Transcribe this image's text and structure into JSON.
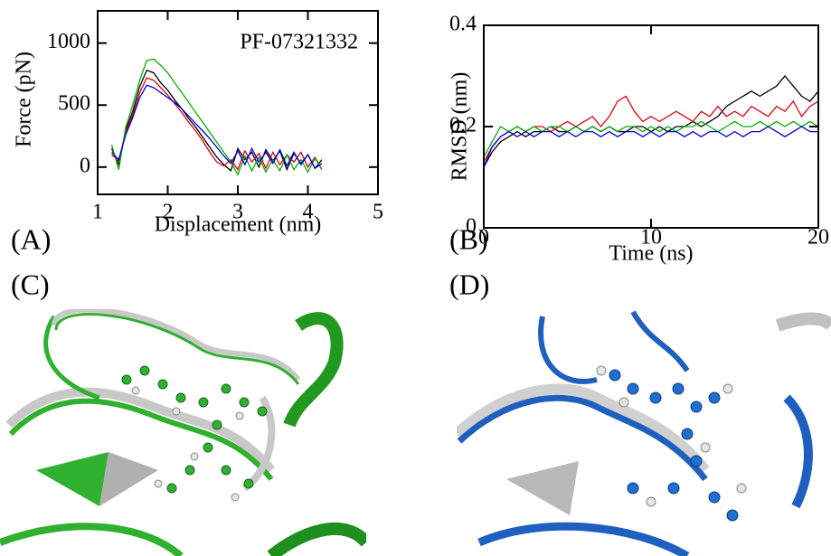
{
  "chart_data": [
    {
      "type": "line",
      "annotation": "PF-07321332",
      "ylabel": "Force (pN)",
      "xlabel": "Displacement (nm)",
      "xlim": [
        1,
        5
      ],
      "xticks": [
        1,
        2,
        3,
        4,
        5
      ],
      "ylim": [
        -220,
        1260
      ],
      "yticks": [
        0,
        500,
        1000
      ],
      "x": [
        1.2,
        1.3,
        1.4,
        1.5,
        1.6,
        1.7,
        1.8,
        1.9,
        2.0,
        2.1,
        2.2,
        2.3,
        2.4,
        2.5,
        2.6,
        2.7,
        2.8,
        2.9,
        3.0,
        3.1,
        3.2,
        3.3,
        3.4,
        3.5,
        3.6,
        3.7,
        3.8,
        3.9,
        4.0,
        4.1,
        4.2
      ],
      "series": [
        {
          "color": "#000000",
          "values": [
            150,
            20,
            300,
            450,
            650,
            780,
            760,
            680,
            620,
            540,
            470,
            390,
            320,
            240,
            160,
            80,
            20,
            -30,
            150,
            60,
            120,
            0,
            140,
            50,
            130,
            -20,
            110,
            30,
            100,
            -10,
            60
          ]
        },
        {
          "color": "#e0000f",
          "values": [
            100,
            50,
            280,
            420,
            600,
            720,
            700,
            640,
            580,
            510,
            440,
            360,
            290,
            210,
            120,
            40,
            10,
            60,
            -20,
            130,
            40,
            110,
            -10,
            120,
            20,
            100,
            40,
            120,
            0,
            80,
            -20
          ]
        },
        {
          "color": "#00b000",
          "values": [
            180,
            -20,
            320,
            500,
            700,
            860,
            870,
            820,
            760,
            680,
            600,
            520,
            440,
            360,
            280,
            200,
            120,
            40,
            -60,
            90,
            -30,
            80,
            -40,
            60,
            -30,
            100,
            -20,
            60,
            -40,
            70,
            -20
          ]
        },
        {
          "color": "#0000e0",
          "values": [
            120,
            60,
            260,
            400,
            560,
            660,
            640,
            600,
            560,
            520,
            470,
            410,
            350,
            290,
            230,
            160,
            90,
            30,
            130,
            20,
            150,
            40,
            120,
            30,
            140,
            10,
            120,
            20,
            100,
            -10,
            30
          ]
        }
      ]
    },
    {
      "type": "line",
      "ylabel": "RMSD (nm)",
      "xlabel": "Time (ns)",
      "xlim": [
        0,
        20
      ],
      "xticks": [
        0,
        10,
        20
      ],
      "ylim": [
        0,
        0.4
      ],
      "yticks": [
        0,
        0.2,
        0.4
      ],
      "x": [
        0,
        0.5,
        1,
        1.5,
        2,
        2.5,
        3,
        3.5,
        4,
        4.5,
        5,
        5.5,
        6,
        6.5,
        7,
        7.5,
        8,
        8.5,
        9,
        9.5,
        10,
        10.5,
        11,
        11.5,
        12,
        12.5,
        13,
        13.5,
        14,
        14.5,
        15,
        15.5,
        16,
        16.5,
        17,
        17.5,
        18,
        18.5,
        19,
        19.5,
        20
      ],
      "series": [
        {
          "color": "#000000",
          "values": [
            0.12,
            0.15,
            0.17,
            0.18,
            0.19,
            0.18,
            0.19,
            0.19,
            0.2,
            0.19,
            0.19,
            0.2,
            0.19,
            0.2,
            0.19,
            0.2,
            0.19,
            0.19,
            0.2,
            0.2,
            0.19,
            0.2,
            0.19,
            0.2,
            0.2,
            0.21,
            0.2,
            0.21,
            0.22,
            0.24,
            0.25,
            0.26,
            0.27,
            0.26,
            0.27,
            0.28,
            0.3,
            0.28,
            0.26,
            0.25,
            0.27
          ]
        },
        {
          "color": "#e0000f",
          "values": [
            0.13,
            0.16,
            0.18,
            0.19,
            0.2,
            0.19,
            0.2,
            0.2,
            0.19,
            0.2,
            0.21,
            0.2,
            0.21,
            0.22,
            0.2,
            0.22,
            0.25,
            0.26,
            0.23,
            0.21,
            0.22,
            0.21,
            0.22,
            0.23,
            0.22,
            0.21,
            0.23,
            0.22,
            0.24,
            0.22,
            0.23,
            0.22,
            0.24,
            0.23,
            0.22,
            0.24,
            0.23,
            0.25,
            0.22,
            0.24,
            0.25
          ]
        },
        {
          "color": "#00b000",
          "values": [
            0.14,
            0.17,
            0.2,
            0.19,
            0.2,
            0.19,
            0.2,
            0.19,
            0.2,
            0.2,
            0.19,
            0.2,
            0.19,
            0.2,
            0.19,
            0.2,
            0.19,
            0.2,
            0.2,
            0.19,
            0.2,
            0.19,
            0.2,
            0.19,
            0.2,
            0.2,
            0.21,
            0.2,
            0.19,
            0.2,
            0.21,
            0.2,
            0.2,
            0.21,
            0.2,
            0.21,
            0.2,
            0.21,
            0.2,
            0.21,
            0.2
          ]
        },
        {
          "color": "#0000e0",
          "values": [
            0.12,
            0.16,
            0.18,
            0.19,
            0.18,
            0.19,
            0.18,
            0.19,
            0.19,
            0.18,
            0.19,
            0.18,
            0.19,
            0.19,
            0.18,
            0.19,
            0.18,
            0.19,
            0.19,
            0.18,
            0.19,
            0.18,
            0.19,
            0.19,
            0.18,
            0.19,
            0.18,
            0.19,
            0.19,
            0.18,
            0.19,
            0.18,
            0.19,
            0.19,
            0.2,
            0.19,
            0.18,
            0.19,
            0.2,
            0.19,
            0.19
          ]
        }
      ]
    }
  ],
  "panel_labels": [
    "(A)",
    "(B)",
    "(C)",
    "(D)"
  ]
}
